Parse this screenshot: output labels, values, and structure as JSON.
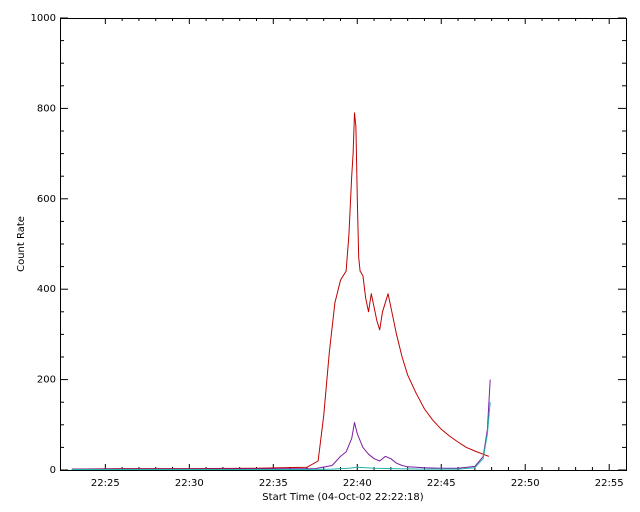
{
  "chart_data": {
    "type": "line",
    "title": "",
    "xlabel": "Start Time (04-Oct-02 22:22:18)",
    "ylabel": "Count Rate",
    "x_ticks": [
      "22:25",
      "22:30",
      "22:35",
      "22:40",
      "22:45",
      "22:50",
      "22:55"
    ],
    "y_ticks": [
      "0",
      "200",
      "400",
      "600",
      "800",
      "1000"
    ],
    "xlim": [
      "22:22:18",
      "22:56:00"
    ],
    "ylim": [
      0,
      1000
    ],
    "grid": false,
    "legend": "none",
    "series": [
      {
        "color": "#c00000",
        "x": [
          "22:23:00",
          "22:26:00",
          "22:30:00",
          "22:34:00",
          "22:37:00",
          "22:37:40",
          "22:38:00",
          "22:38:20",
          "22:38:40",
          "22:39:00",
          "22:39:10",
          "22:39:20",
          "22:39:30",
          "22:39:40",
          "22:39:45",
          "22:39:50",
          "22:39:55",
          "22:40:00",
          "22:40:05",
          "22:40:10",
          "22:40:20",
          "22:40:30",
          "22:40:40",
          "22:40:50",
          "22:41:00",
          "22:41:10",
          "22:41:20",
          "22:41:30",
          "22:41:40",
          "22:41:50",
          "22:42:00",
          "22:42:10",
          "22:42:20",
          "22:42:40",
          "22:43:00",
          "22:43:30",
          "22:44:00",
          "22:44:30",
          "22:45:00",
          "22:45:30",
          "22:46:00",
          "22:46:30",
          "22:47:00",
          "22:47:30",
          "22:47:50"
        ],
        "values": [
          2,
          3,
          3,
          4,
          6,
          20,
          120,
          260,
          370,
          420,
          430,
          440,
          520,
          650,
          700,
          790,
          760,
          600,
          470,
          440,
          430,
          380,
          350,
          390,
          360,
          330,
          310,
          350,
          370,
          390,
          360,
          330,
          300,
          250,
          210,
          170,
          135,
          110,
          90,
          75,
          62,
          50,
          42,
          35,
          30
        ]
      },
      {
        "color": "#7b1fa2",
        "x": [
          "22:23:00",
          "22:30:00",
          "22:37:30",
          "22:38:30",
          "22:39:00",
          "22:39:20",
          "22:39:40",
          "22:39:50",
          "22:40:00",
          "22:40:20",
          "22:40:40",
          "22:41:00",
          "22:41:20",
          "22:41:40",
          "22:42:00",
          "22:42:20",
          "22:42:40",
          "22:43:00",
          "22:44:00",
          "22:45:00",
          "22:46:00",
          "22:47:00",
          "22:47:30",
          "22:47:45",
          "22:47:55"
        ],
        "values": [
          2,
          2,
          3,
          10,
          30,
          40,
          70,
          105,
          80,
          50,
          35,
          25,
          20,
          30,
          25,
          15,
          10,
          7,
          5,
          4,
          4,
          8,
          30,
          90,
          200
        ]
      },
      {
        "color": "#20b2aa",
        "x": [
          "22:23:00",
          "22:30:00",
          "22:37:00",
          "22:38:30",
          "22:39:30",
          "22:40:00",
          "22:41:00",
          "22:42:00",
          "22:44:00",
          "22:46:00",
          "22:47:00",
          "22:47:30",
          "22:47:45",
          "22:47:55"
        ],
        "values": [
          1,
          1,
          1,
          2,
          4,
          6,
          4,
          3,
          2,
          2,
          5,
          25,
          80,
          150
        ]
      }
    ]
  }
}
